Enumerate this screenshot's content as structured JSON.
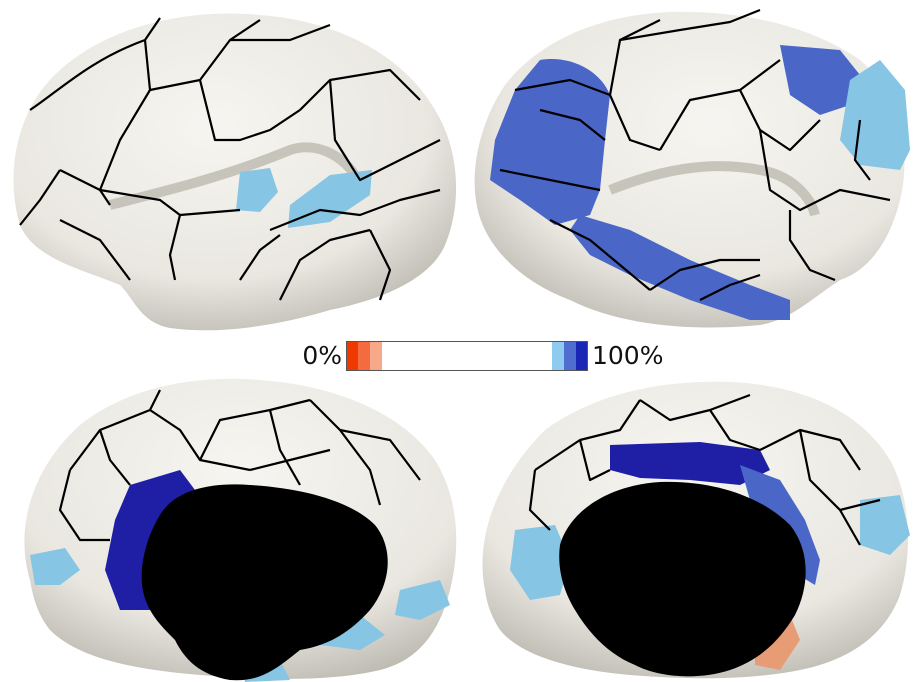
{
  "figure": {
    "description_free": true
  },
  "colorbar": {
    "min_label": "0%",
    "max_label": "100%",
    "colors": [
      "#ee3a00",
      "#f46b3f",
      "#f7a888",
      "#ffffff",
      "#8ecbee",
      "#4f6ed0",
      "#1a27b4"
    ],
    "neutral": "#ffffff"
  },
  "surface": {
    "base_color": "#eeece6",
    "outline_color": "#000000",
    "medial_wall_color": "#000000"
  },
  "overlay_colors": {
    "light_blue": "#86c5e4",
    "mid_blue": "#4a67c8",
    "dark_blue": "#1f1fa6",
    "light_orange": "#e89c76"
  }
}
